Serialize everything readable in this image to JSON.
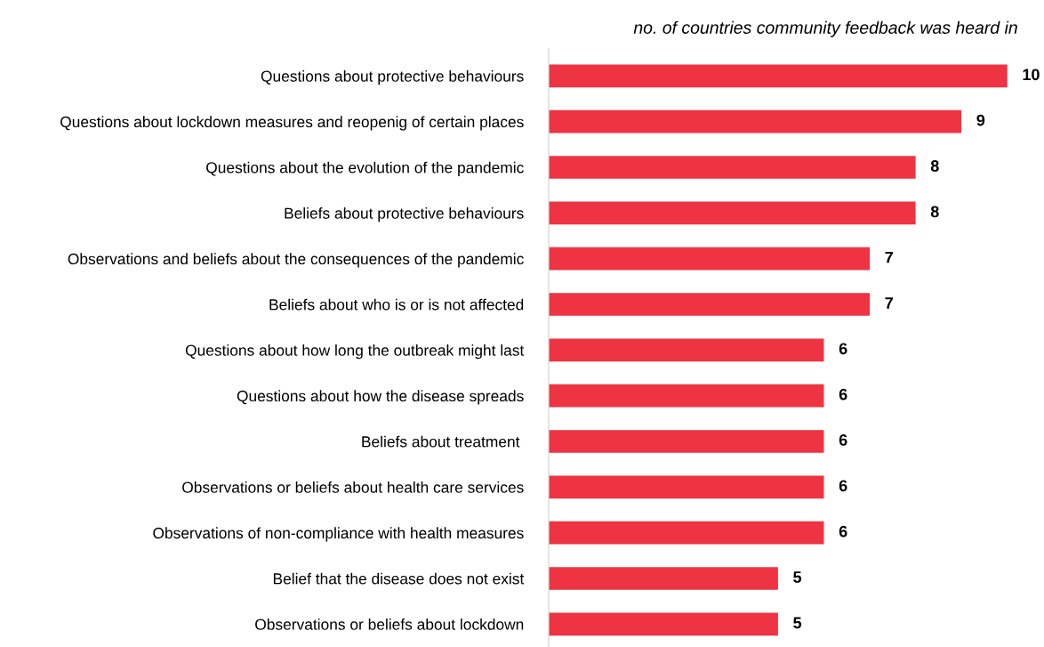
{
  "chart_data": {
    "type": "bar",
    "orientation": "horizontal",
    "title": "no. of countries community feedback was heard in",
    "categories": [
      "Questions about protective behaviours",
      "Questions about lockdown measures and reopenig of certain places",
      "Questions about the evolution of the pandemic",
      "Beliefs about protective behaviours",
      "Observations and beliefs about the consequences of the pandemic",
      "Beliefs about who is or is not affected",
      "Questions about how long the outbreak might last",
      "Questions about how the disease spreads",
      "Beliefs about treatment ",
      "Observations or beliefs about health care services",
      "Observations of non-compliance with health measures",
      "Belief that the disease does not exist",
      "Observations or beliefs about lockdown"
    ],
    "values": [
      10,
      9,
      8,
      8,
      7,
      7,
      6,
      6,
      6,
      6,
      6,
      5,
      5
    ],
    "color": "#ee3342",
    "data_labels": true,
    "grid": false,
    "legend": false
  }
}
